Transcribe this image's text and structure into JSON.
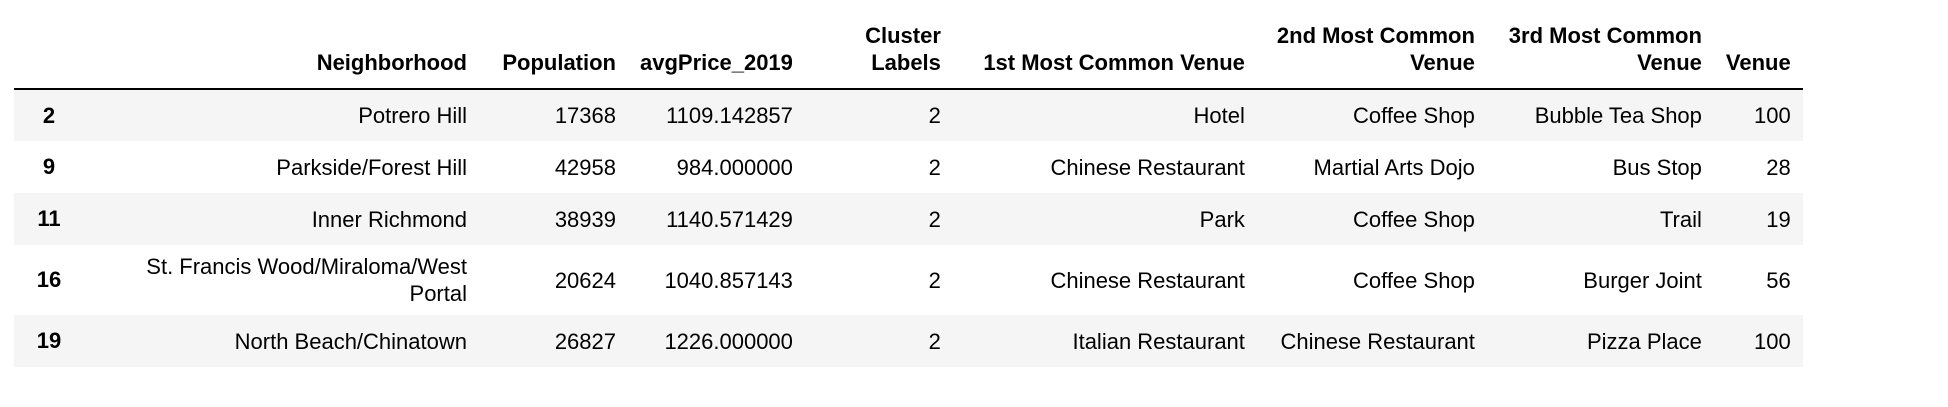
{
  "table": {
    "columns": [
      "",
      "Neighborhood",
      "Population",
      "avgPrice_2019",
      "Cluster Labels",
      "1st Most Common Venue",
      "2nd Most Common Venue",
      "3rd Most Common Venue",
      "Venue"
    ],
    "rows": [
      [
        "2",
        "Potrero Hill",
        "17368",
        "1109.142857",
        "2",
        "Hotel",
        "Coffee Shop",
        "Bubble Tea Shop",
        "100"
      ],
      [
        "9",
        "Parkside/Forest Hill",
        "42958",
        "984.000000",
        "2",
        "Chinese Restaurant",
        "Martial Arts Dojo",
        "Bus Stop",
        "28"
      ],
      [
        "11",
        "Inner Richmond",
        "38939",
        "1140.571429",
        "2",
        "Park",
        "Coffee Shop",
        "Trail",
        "19"
      ],
      [
        "16",
        "St. Francis Wood/Miraloma/West Portal",
        "20624",
        "1040.857143",
        "2",
        "Chinese Restaurant",
        "Coffee Shop",
        "Burger Joint",
        "56"
      ],
      [
        "19",
        "North Beach/Chinatown",
        "26827",
        "1226.000000",
        "2",
        "Italian Restaurant",
        "Chinese Restaurant",
        "Pizza Place",
        "100"
      ]
    ]
  }
}
